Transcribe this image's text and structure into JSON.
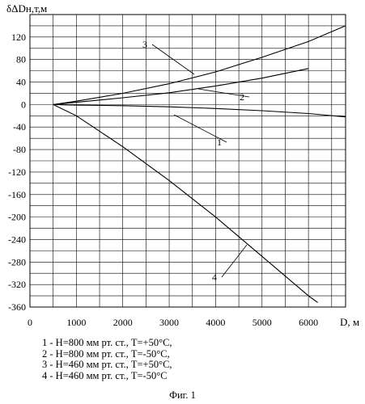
{
  "chart_data": {
    "type": "line",
    "ylabel": "δΔDн,т,м",
    "xlabel": "D, м",
    "xlim": [
      0,
      6800
    ],
    "ylim": [
      -360,
      160
    ],
    "xticks": [
      0,
      1000,
      2000,
      3000,
      4000,
      5000,
      6000
    ],
    "yticks": [
      140,
      120,
      100,
      80,
      60,
      40,
      20,
      0,
      -20,
      -40,
      -60,
      -80,
      -100,
      -120,
      -140,
      -160,
      -180,
      -200,
      -220,
      -240,
      -260,
      -280,
      -300,
      -320,
      -340,
      -360
    ],
    "ytick_labels": [
      "",
      "120",
      "",
      "80",
      "",
      "40",
      "",
      "0",
      "",
      "-40",
      "",
      "-80",
      "",
      "-120",
      "",
      "-160",
      "",
      "-200",
      "",
      "-240",
      "",
      "-280",
      "",
      "-320",
      "",
      "-360"
    ],
    "grid": true,
    "series": [
      {
        "name": "1",
        "x": [
          500,
          1000,
          2000,
          3000,
          4000,
          5000,
          6000,
          6800
        ],
        "y": [
          0,
          -1,
          -2,
          -4,
          -7,
          -11,
          -16,
          -22
        ]
      },
      {
        "name": "2",
        "x": [
          500,
          1000,
          2000,
          3000,
          4000,
          5000,
          6000
        ],
        "y": [
          0,
          4,
          12,
          21,
          33,
          47,
          64
        ]
      },
      {
        "name": "3",
        "x": [
          500,
          1000,
          2000,
          3000,
          4000,
          5000,
          6000,
          6800
        ],
        "y": [
          0,
          6,
          20,
          37,
          58,
          84,
          112,
          140
        ]
      },
      {
        "name": "4",
        "x": [
          500,
          1000,
          2000,
          3000,
          4000,
          5000,
          6000,
          6200
        ],
        "y": [
          0,
          -20,
          -75,
          -135,
          -200,
          -270,
          -340,
          -352
        ]
      }
    ],
    "annotations": [
      {
        "label": "3",
        "series": "3"
      },
      {
        "label": "2",
        "series": "2"
      },
      {
        "label": "1",
        "series": "1"
      },
      {
        "label": "4",
        "series": "4"
      }
    ]
  },
  "legend": {
    "items": [
      "1 - H=800 мм рт. ст., T=+50°C,",
      "2 - H=800 мм рт. ст., T=-50°C,",
      "3 - H=460 мм рт. ст., T=+50°C,",
      "4 - H=460 мм рт. ст., T=-50°C"
    ]
  },
  "caption": "Фиг. 1"
}
